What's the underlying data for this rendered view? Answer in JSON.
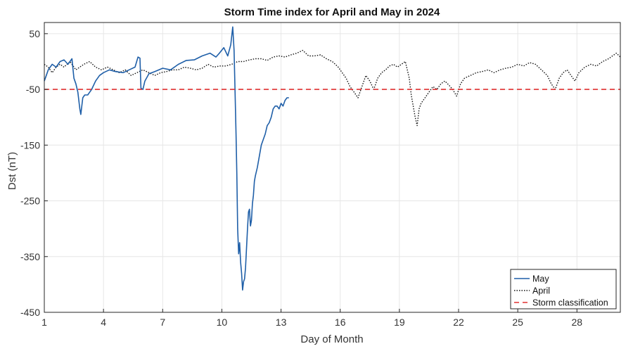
{
  "chart_data": {
    "type": "line",
    "title": "Storm Time index for April and May in 2024",
    "xlabel": "Day of Month",
    "ylabel": "Dst (nT)",
    "xlim": [
      1,
      30.2
    ],
    "ylim": [
      -450,
      70
    ],
    "x_ticks": [
      1,
      4,
      7,
      10,
      13,
      16,
      19,
      22,
      25,
      28
    ],
    "y_ticks": [
      50,
      -50,
      -150,
      -250,
      -350,
      -450
    ],
    "grid": true,
    "legend_position": "bottom-right",
    "series": [
      {
        "name": "May",
        "color": "#1f5fa8",
        "style": "solid",
        "x": [
          1.0,
          1.1,
          1.2,
          1.4,
          1.6,
          1.8,
          2.0,
          2.2,
          2.4,
          2.5,
          2.6,
          2.7,
          2.8,
          2.85,
          2.95,
          3.05,
          3.2,
          3.4,
          3.6,
          3.8,
          4.0,
          4.3,
          4.6,
          5.0,
          5.3,
          5.6,
          5.75,
          5.85,
          5.9,
          6.0,
          6.1,
          6.3,
          6.6,
          7.0,
          7.4,
          7.8,
          8.2,
          8.6,
          9.0,
          9.4,
          9.7,
          9.9,
          10.1,
          10.3,
          10.45,
          10.55,
          10.62,
          10.68,
          10.72,
          10.76,
          10.8,
          10.85,
          10.9,
          10.95,
          11.0,
          11.05,
          11.1,
          11.15,
          11.2,
          11.25,
          11.3,
          11.35,
          11.4,
          11.45,
          11.5,
          11.55,
          11.6,
          11.65,
          11.7,
          11.8,
          11.9,
          12.0,
          12.1,
          12.2,
          12.3,
          12.4,
          12.5,
          12.6,
          12.7,
          12.8,
          12.9,
          13.0,
          13.1,
          13.2,
          13.3,
          13.4
        ],
        "y": [
          -35,
          -25,
          -15,
          -5,
          -10,
          0,
          3,
          -5,
          5,
          -30,
          -40,
          -55,
          -85,
          -95,
          -65,
          -60,
          -60,
          -50,
          -35,
          -25,
          -20,
          -15,
          -18,
          -20,
          -15,
          -10,
          8,
          6,
          -48,
          -50,
          -35,
          -22,
          -18,
          -12,
          -15,
          -5,
          2,
          3,
          10,
          15,
          8,
          16,
          25,
          10,
          30,
          62,
          20,
          -70,
          -130,
          -200,
          -300,
          -345,
          -325,
          -360,
          -380,
          -410,
          -395,
          -390,
          -370,
          -335,
          -300,
          -270,
          -265,
          -295,
          -285,
          -255,
          -240,
          -215,
          -205,
          -190,
          -170,
          -150,
          -140,
          -130,
          -115,
          -110,
          -100,
          -85,
          -80,
          -80,
          -85,
          -75,
          -80,
          -70,
          -65,
          -65
        ]
      },
      {
        "name": "April",
        "color": "#111111",
        "style": "dotted",
        "x": [
          1.0,
          1.2,
          1.4,
          1.6,
          1.8,
          2.0,
          2.3,
          2.6,
          3.0,
          3.3,
          3.6,
          3.9,
          4.2,
          4.5,
          4.8,
          5.1,
          5.4,
          5.7,
          6.0,
          6.3,
          6.6,
          6.9,
          7.2,
          7.5,
          7.8,
          8.1,
          8.4,
          8.7,
          9.0,
          9.3,
          9.6,
          9.9,
          10.2,
          10.5,
          10.8,
          11.1,
          11.4,
          11.7,
          12.0,
          12.3,
          12.6,
          12.9,
          13.2,
          13.5,
          13.8,
          14.1,
          14.4,
          14.7,
          15.0,
          15.3,
          15.6,
          15.9,
          16.1,
          16.3,
          16.5,
          16.7,
          16.9,
          17.1,
          17.3,
          17.5,
          17.7,
          17.9,
          18.1,
          18.3,
          18.5,
          18.7,
          18.9,
          19.1,
          19.3,
          19.5,
          19.6,
          19.7,
          19.8,
          19.9,
          20.0,
          20.1,
          20.3,
          20.5,
          20.7,
          20.9,
          21.1,
          21.3,
          21.5,
          21.7,
          21.9,
          22.1,
          22.3,
          22.6,
          22.9,
          23.2,
          23.5,
          23.8,
          24.1,
          24.4,
          24.7,
          25.0,
          25.3,
          25.6,
          25.9,
          26.2,
          26.5,
          26.7,
          26.9,
          27.1,
          27.3,
          27.5,
          27.7,
          27.9,
          28.1,
          28.4,
          28.7,
          29.0,
          29.3,
          29.6,
          29.8,
          30.0,
          30.2
        ],
        "y": [
          -5,
          -10,
          -20,
          -10,
          -5,
          -10,
          0,
          -15,
          -5,
          0,
          -10,
          -15,
          -10,
          -15,
          -20,
          -15,
          -25,
          -20,
          -15,
          -20,
          -25,
          -20,
          -18,
          -15,
          -15,
          -10,
          -12,
          -15,
          -12,
          -5,
          -10,
          -8,
          -8,
          -5,
          0,
          0,
          3,
          5,
          5,
          2,
          8,
          10,
          8,
          12,
          15,
          20,
          10,
          10,
          12,
          5,
          0,
          -10,
          -20,
          -30,
          -45,
          -55,
          -65,
          -45,
          -25,
          -35,
          -50,
          -30,
          -20,
          -15,
          -8,
          -5,
          -10,
          -5,
          0,
          -30,
          -60,
          -80,
          -100,
          -115,
          -85,
          -75,
          -65,
          -55,
          -45,
          -50,
          -40,
          -35,
          -42,
          -50,
          -62,
          -40,
          -30,
          -25,
          -20,
          -18,
          -15,
          -20,
          -15,
          -12,
          -10,
          -5,
          -8,
          -2,
          -5,
          -15,
          -25,
          -40,
          -50,
          -30,
          -20,
          -15,
          -25,
          -35,
          -20,
          -10,
          -5,
          -8,
          0,
          5,
          10,
          15,
          8
        ]
      },
      {
        "name": "Storm classification",
        "color": "#e03030",
        "style": "dashed",
        "x": [
          1,
          30.2
        ],
        "y": [
          -50,
          -50
        ]
      }
    ]
  }
}
